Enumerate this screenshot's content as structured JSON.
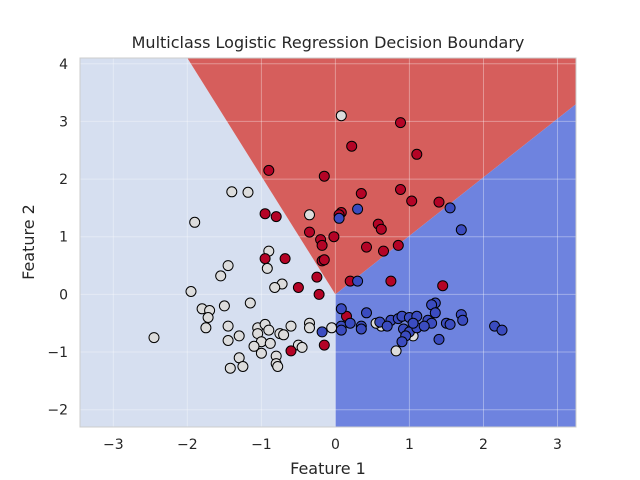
{
  "chart_data": {
    "type": "scatter",
    "title": "Multiclass Logistic Regression Decision Boundary",
    "xlabel": "Feature 1",
    "ylabel": "Feature 2",
    "xlim": [
      -3.45,
      3.25
    ],
    "ylim": [
      -2.3,
      4.1
    ],
    "x_ticks": [
      -3,
      -2,
      -1,
      0,
      1,
      2,
      3
    ],
    "x_tick_labels": [
      "−3",
      "−2",
      "−1",
      "0",
      "1",
      "2",
      "3"
    ],
    "y_ticks": [
      -2,
      -1,
      0,
      1,
      2,
      3,
      4
    ],
    "y_tick_labels": [
      "−2",
      "−1",
      "0",
      "1",
      "2",
      "3",
      "4"
    ],
    "grid": true,
    "legend": "none",
    "colors": {
      "class_0_point": "#dcdcdc",
      "class_1_point": "#b40426",
      "class_2_point": "#3b4cc0",
      "class_0_region": "#d6dff0",
      "class_1_region": "#d65e5c",
      "class_2_region": "#6e83df",
      "point_edge": "#000000"
    },
    "regions": [
      {
        "class": 0,
        "polygon": [
          [
            -3.45,
            4.1
          ],
          [
            -2.0,
            4.1
          ],
          [
            0.0,
            0.0
          ],
          [
            0.0,
            -2.3
          ],
          [
            -3.45,
            -2.3
          ]
        ]
      },
      {
        "class": 1,
        "polygon": [
          [
            -2.0,
            4.1
          ],
          [
            3.25,
            4.1
          ],
          [
            3.25,
            3.3
          ],
          [
            0.0,
            0.0
          ]
        ]
      },
      {
        "class": 2,
        "polygon": [
          [
            0.0,
            0.0
          ],
          [
            3.25,
            3.3
          ],
          [
            3.25,
            -2.3
          ],
          [
            0.0,
            -2.3
          ]
        ]
      }
    ],
    "series": [
      {
        "class": 0,
        "points": [
          [
            0.08,
            3.1
          ],
          [
            -1.4,
            1.78
          ],
          [
            -1.18,
            1.77
          ],
          [
            -1.9,
            1.25
          ],
          [
            -0.35,
            1.38
          ],
          [
            -0.9,
            0.75
          ],
          [
            -1.45,
            0.5
          ],
          [
            -0.92,
            0.45
          ],
          [
            -1.55,
            0.32
          ],
          [
            -0.72,
            0.18
          ],
          [
            -0.82,
            0.12
          ],
          [
            -1.95,
            0.05
          ],
          [
            -1.15,
            -0.15
          ],
          [
            -1.5,
            -0.2
          ],
          [
            -1.8,
            -0.25
          ],
          [
            -1.7,
            -0.28
          ],
          [
            -1.72,
            -0.4
          ],
          [
            -1.75,
            -0.58
          ],
          [
            -1.45,
            -0.55
          ],
          [
            -1.05,
            -0.58
          ],
          [
            -0.95,
            -0.52
          ],
          [
            -0.6,
            -0.55
          ],
          [
            -0.35,
            -0.5
          ],
          [
            -0.35,
            -0.58
          ],
          [
            -0.05,
            -0.58
          ],
          [
            -1.3,
            -0.72
          ],
          [
            -1.05,
            -0.68
          ],
          [
            -0.9,
            -0.62
          ],
          [
            -0.75,
            -0.68
          ],
          [
            -0.7,
            -0.7
          ],
          [
            -2.45,
            -0.75
          ],
          [
            -1.45,
            -0.8
          ],
          [
            -1.0,
            -0.82
          ],
          [
            -0.88,
            -0.85
          ],
          [
            -1.1,
            -0.9
          ],
          [
            -0.5,
            -0.88
          ],
          [
            -0.45,
            -0.92
          ],
          [
            -1.0,
            -1.02
          ],
          [
            -0.8,
            -1.07
          ],
          [
            -1.3,
            -1.1
          ],
          [
            -0.8,
            -1.2
          ],
          [
            -1.25,
            -1.25
          ],
          [
            -1.42,
            -1.28
          ],
          [
            -0.78,
            -1.25
          ],
          [
            0.62,
            -0.55
          ],
          [
            0.82,
            -0.98
          ],
          [
            1.05,
            -0.72
          ],
          [
            0.55,
            -0.5
          ]
        ]
      },
      {
        "class": 1,
        "points": [
          [
            0.88,
            2.98
          ],
          [
            0.22,
            2.57
          ],
          [
            1.1,
            2.43
          ],
          [
            -0.9,
            2.15
          ],
          [
            -0.15,
            2.05
          ],
          [
            0.35,
            1.75
          ],
          [
            0.88,
            1.82
          ],
          [
            1.03,
            1.62
          ],
          [
            1.4,
            1.6
          ],
          [
            -0.95,
            1.4
          ],
          [
            -0.8,
            1.35
          ],
          [
            0.08,
            1.42
          ],
          [
            0.05,
            1.38
          ],
          [
            0.58,
            1.22
          ],
          [
            0.62,
            1.13
          ],
          [
            -0.35,
            1.08
          ],
          [
            -0.2,
            0.95
          ],
          [
            -0.02,
            1.0
          ],
          [
            -0.18,
            0.85
          ],
          [
            0.42,
            0.82
          ],
          [
            0.85,
            0.85
          ],
          [
            0.65,
            0.75
          ],
          [
            -0.95,
            0.62
          ],
          [
            -0.68,
            0.62
          ],
          [
            -0.18,
            0.58
          ],
          [
            -0.15,
            0.6
          ],
          [
            -0.25,
            0.3
          ],
          [
            0.2,
            0.23
          ],
          [
            0.75,
            0.23
          ],
          [
            -0.5,
            0.12
          ],
          [
            1.45,
            0.15
          ],
          [
            -0.22,
            0.0
          ],
          [
            0.15,
            -0.38
          ],
          [
            -0.6,
            -0.98
          ],
          [
            -0.15,
            -0.88
          ]
        ]
      },
      {
        "class": 2,
        "points": [
          [
            0.3,
            1.48
          ],
          [
            0.05,
            1.32
          ],
          [
            1.55,
            1.5
          ],
          [
            1.7,
            1.12
          ],
          [
            0.3,
            0.23
          ],
          [
            0.08,
            -0.25
          ],
          [
            0.42,
            -0.32
          ],
          [
            1.35,
            -0.15
          ],
          [
            1.3,
            -0.18
          ],
          [
            1.35,
            -0.32
          ],
          [
            0.75,
            -0.45
          ],
          [
            0.85,
            -0.42
          ],
          [
            0.9,
            -0.38
          ],
          [
            1.0,
            -0.4
          ],
          [
            1.1,
            -0.38
          ],
          [
            1.25,
            -0.45
          ],
          [
            1.3,
            -0.5
          ],
          [
            1.5,
            -0.5
          ],
          [
            1.55,
            -0.52
          ],
          [
            1.7,
            -0.35
          ],
          [
            1.72,
            -0.45
          ],
          [
            2.15,
            -0.55
          ],
          [
            2.25,
            -0.62
          ],
          [
            -0.18,
            -0.65
          ],
          [
            0.08,
            -0.55
          ],
          [
            0.2,
            -0.5
          ],
          [
            0.35,
            -0.55
          ],
          [
            0.35,
            -0.6
          ],
          [
            0.6,
            -0.48
          ],
          [
            0.7,
            -0.55
          ],
          [
            0.92,
            -0.6
          ],
          [
            1.0,
            -0.65
          ],
          [
            1.1,
            -0.58
          ],
          [
            1.2,
            -0.55
          ],
          [
            1.05,
            -0.5
          ],
          [
            0.95,
            -0.72
          ],
          [
            1.4,
            -0.78
          ],
          [
            0.9,
            -0.82
          ],
          [
            0.08,
            -0.62
          ]
        ]
      }
    ]
  }
}
